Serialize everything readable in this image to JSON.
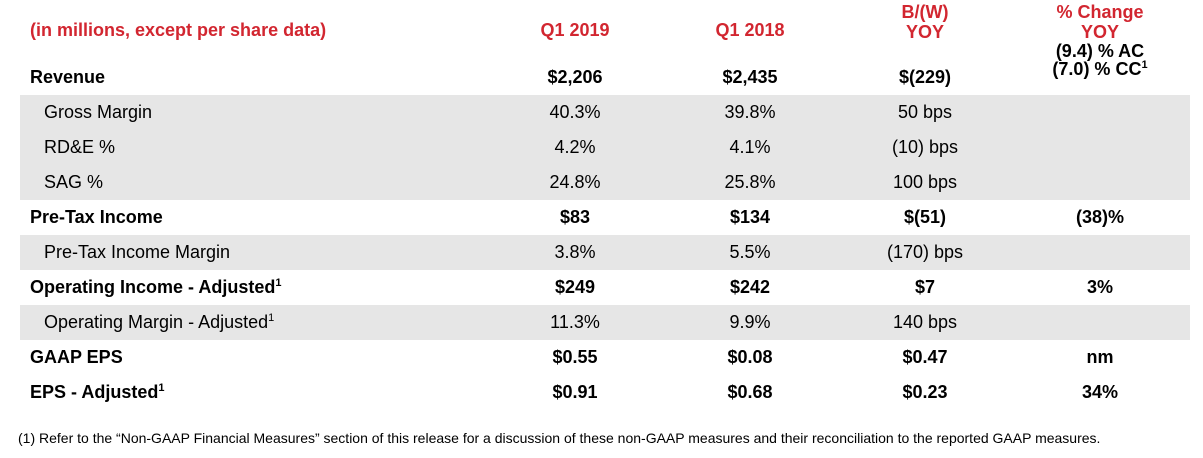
{
  "header": {
    "label": "(in millions, except per share data)",
    "q1_2019": "Q1 2019",
    "q1_2018": "Q1 2018",
    "bw_line1": "B/(W)",
    "bw_line2": "YOY",
    "pct_line1": "% Change",
    "pct_line2": "YOY"
  },
  "rows": [
    {
      "label": "Revenue",
      "q1_2019": "$2,206",
      "q1_2018": "$2,435",
      "bw": "$(229)",
      "pct_line1": "(9.4) % AC",
      "pct_line2": "(7.0) % CC",
      "pct_sup": "1"
    },
    {
      "label": "Gross Margin",
      "q1_2019": "40.3%",
      "q1_2018": "39.8%",
      "bw": "50 bps",
      "pct": ""
    },
    {
      "label": "RD&E %",
      "q1_2019": "4.2%",
      "q1_2018": "4.1%",
      "bw": "(10) bps",
      "pct": ""
    },
    {
      "label": "SAG %",
      "q1_2019": "24.8%",
      "q1_2018": "25.8%",
      "bw": "100 bps",
      "pct": ""
    },
    {
      "label": "Pre-Tax Income",
      "q1_2019": "$83",
      "q1_2018": "$134",
      "bw": "$(51)",
      "pct": "(38)%"
    },
    {
      "label": "Pre-Tax Income Margin",
      "q1_2019": "3.8%",
      "q1_2018": "5.5%",
      "bw": "(170) bps",
      "pct": ""
    },
    {
      "label": "Operating Income - Adjusted",
      "sup": "1",
      "q1_2019": "$249",
      "q1_2018": "$242",
      "bw": "$7",
      "pct": "3%"
    },
    {
      "label": "Operating Margin - Adjusted",
      "sup": "1",
      "q1_2019": "11.3%",
      "q1_2018": "9.9%",
      "bw": "140 bps",
      "pct": ""
    },
    {
      "label": "GAAP EPS",
      "q1_2019": "$0.55",
      "q1_2018": "$0.08",
      "bw": "$0.47",
      "pct": "nm"
    },
    {
      "label": "EPS - Adjusted",
      "sup": "1",
      "q1_2019": "$0.91",
      "q1_2018": "$0.68",
      "bw": "$0.23",
      "pct": "34%"
    }
  ],
  "footnote": "(1) Refer to the “Non-GAAP Financial Measures” section of this release for a discussion of these non-GAAP measures and their reconciliation to the reported GAAP measures.",
  "colors": {
    "header_red": "#d22630",
    "row_shade": "#e6e6e6"
  }
}
